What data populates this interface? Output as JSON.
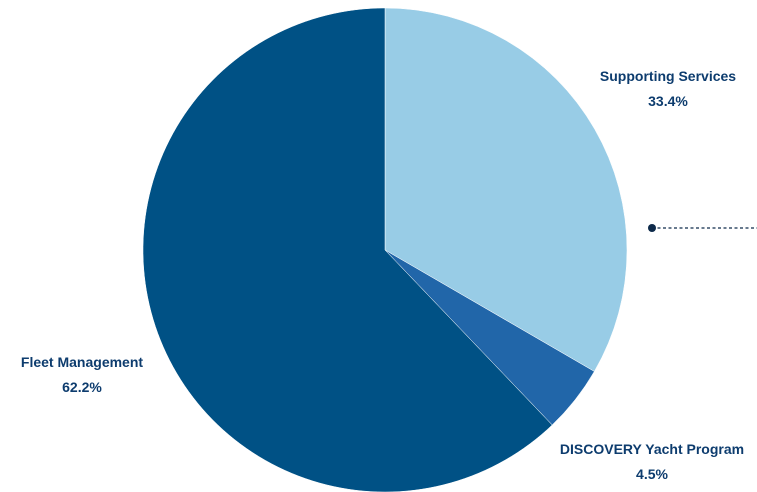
{
  "chart_data": {
    "type": "pie",
    "slices": [
      {
        "label": "Supporting Services",
        "value": 33.4,
        "value_label": "33.4%",
        "color": "#98cce6"
      },
      {
        "label": "DISCOVERY Yacht Program",
        "value": 4.5,
        "value_label": "4.5%",
        "color": "#2166a9"
      },
      {
        "label": "Fleet Management",
        "value": 62.2,
        "value_label": "62.2%",
        "color": "#005185"
      }
    ],
    "label_color": "#0d3c6e",
    "connector_color": "#0d2a4a",
    "start_angle": "12 o'clock",
    "direction": "clockwise"
  }
}
